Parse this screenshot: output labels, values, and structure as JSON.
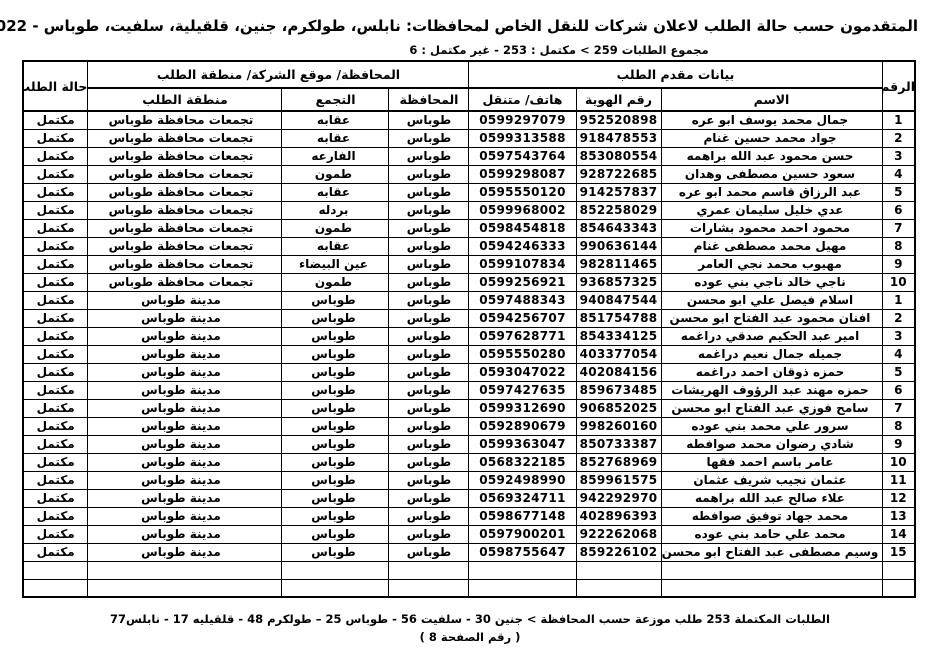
{
  "header": {
    "title": "المتقدمون حسب حالة الطلب لاعلان شركات للنقل الخاص لمحافظات: نابلس، طولكرم، جنين، قلقيلية، سلفيت، طوباس - 2022",
    "subtitle": "مجموع الطلبات 259 > مكتمل : 253 - غير مكتمل : 6"
  },
  "table": {
    "headers": {
      "number": "الرقم",
      "applicant_data": "بيانات مقدم الطلب",
      "location_group": "المحافظة/ موقع الشركة/ منطقة الطلب",
      "status": "حالة الطلب",
      "name": "الاسم",
      "id": "رقم الهوية",
      "phone": "هاتف/ متنقل",
      "governorate": "المحافظة",
      "community": "التجمع",
      "area": "منطقة الطلب"
    },
    "rows": [
      {
        "num": "1",
        "name": "جمال محمد يوسف ابو عره",
        "id": "952520898",
        "phone": "0599297079",
        "gov": "طوباس",
        "community": "عقابه",
        "area": "تجمعات محافظة طوباس",
        "status": "مكتمل"
      },
      {
        "num": "2",
        "name": "جواد محمد حسين غنام",
        "id": "918478553",
        "phone": "0599313588",
        "gov": "طوباس",
        "community": "عقابه",
        "area": "تجمعات محافظة طوباس",
        "status": "مكتمل"
      },
      {
        "num": "3",
        "name": "حسن محمود عبد الله براهمه",
        "id": "853080554",
        "phone": "0597543764",
        "gov": "طوباس",
        "community": "الفارعه",
        "area": "تجمعات محافظة طوباس",
        "status": "مكتمل"
      },
      {
        "num": "4",
        "name": "سعود حسين مصطفى وهدان",
        "id": "928722685",
        "phone": "0599298087",
        "gov": "طوباس",
        "community": "طمون",
        "area": "تجمعات محافظة طوباس",
        "status": "مكتمل"
      },
      {
        "num": "5",
        "name": "عبد الرزاق قاسم محمد ابو عره",
        "id": "914257837",
        "phone": "0595550120",
        "gov": "طوباس",
        "community": "عقابه",
        "area": "تجمعات محافظة طوباس",
        "status": "مكتمل"
      },
      {
        "num": "6",
        "name": "عدي خليل سليمان عمري",
        "id": "852258029",
        "phone": "0599968002",
        "gov": "طوباس",
        "community": "بردله",
        "area": "تجمعات محافظة طوباس",
        "status": "مكتمل"
      },
      {
        "num": "7",
        "name": "محمود احمد محمود بشارات",
        "id": "854643343",
        "phone": "0598454818",
        "gov": "طوباس",
        "community": "طمون",
        "area": "تجمعات محافظة طوباس",
        "status": "مكتمل"
      },
      {
        "num": "8",
        "name": "مهيل محمد مصطفى غنام",
        "id": "990636144",
        "phone": "0594246333",
        "gov": "طوباس",
        "community": "عقابه",
        "area": "تجمعات محافظة طوباس",
        "status": "مكتمل"
      },
      {
        "num": "9",
        "name": "مهيوب محمد نجي العامر",
        "id": "982811465",
        "phone": "0599107834",
        "gov": "طوباس",
        "community": "عين البيضاء",
        "area": "تجمعات محافظة طوباس",
        "status": "مكتمل"
      },
      {
        "num": "10",
        "name": "ناجي خالد ناجي بني عوده",
        "id": "936857325",
        "phone": "0599256921",
        "gov": "طوباس",
        "community": "طمون",
        "area": "تجمعات محافظة طوباس",
        "status": "مكتمل"
      },
      {
        "num": "1",
        "name": "اسلام فيصل علي ابو محسن",
        "id": "940847544",
        "phone": "0597488343",
        "gov": "طوباس",
        "community": "طوباس",
        "area": "مدينة طوباس",
        "status": "مكتمل"
      },
      {
        "num": "2",
        "name": "افنان محمود عبد الفتاح ابو محسن",
        "id": "851754788",
        "phone": "0594256707",
        "gov": "طوباس",
        "community": "طوباس",
        "area": "مدينة طوباس",
        "status": "مكتمل"
      },
      {
        "num": "3",
        "name": "امير عبد الحكيم صدقي دراغمه",
        "id": "854334125",
        "phone": "0597628771",
        "gov": "طوباس",
        "community": "طوباس",
        "area": "مدينة طوباس",
        "status": "مكتمل"
      },
      {
        "num": "4",
        "name": "جميله جمال نعيم دراغمه",
        "id": "403377054",
        "phone": "0595550280",
        "gov": "طوباس",
        "community": "طوباس",
        "area": "مدينة طوباس",
        "status": "مكتمل"
      },
      {
        "num": "5",
        "name": "حمزه ذوقان احمد دراغمه",
        "id": "402084156",
        "phone": "0593047022",
        "gov": "طوباس",
        "community": "طوباس",
        "area": "مدينة طوباس",
        "status": "مكتمل"
      },
      {
        "num": "6",
        "name": "حمزه مهند عبد الرؤوف الهريشات",
        "id": "859673485",
        "phone": "0597427635",
        "gov": "طوباس",
        "community": "طوباس",
        "area": "مدينة طوباس",
        "status": "مكتمل"
      },
      {
        "num": "7",
        "name": "سامح فوزي عبد الفتاح ابو محسن",
        "id": "906852025",
        "phone": "0599312690",
        "gov": "طوباس",
        "community": "طوباس",
        "area": "مدينة طوباس",
        "status": "مكتمل"
      },
      {
        "num": "8",
        "name": "سرور علي محمد بني عوده",
        "id": "998260160",
        "phone": "0592890679",
        "gov": "طوباس",
        "community": "طوباس",
        "area": "مدينة طوباس",
        "status": "مكتمل"
      },
      {
        "num": "9",
        "name": "شادي رضوان محمد صوافطه",
        "id": "850733387",
        "phone": "0599363047",
        "gov": "طوباس",
        "community": "طوباس",
        "area": "مدينة طوباس",
        "status": "مكتمل"
      },
      {
        "num": "10",
        "name": "عامر باسم احمد فقها",
        "id": "852768969",
        "phone": "0568322185",
        "gov": "طوباس",
        "community": "طوباس",
        "area": "مدينة طوباس",
        "status": "مكتمل"
      },
      {
        "num": "11",
        "name": "عثمان نجيب شريف عثمان",
        "id": "859961575",
        "phone": "0592498990",
        "gov": "طوباس",
        "community": "طوباس",
        "area": "مدينة طوباس",
        "status": "مكتمل"
      },
      {
        "num": "12",
        "name": "علاء صالح عبد الله براهمه",
        "id": "942292970",
        "phone": "0569324711",
        "gov": "طوباس",
        "community": "طوباس",
        "area": "مدينة طوباس",
        "status": "مكتمل"
      },
      {
        "num": "13",
        "name": "محمد جهاد توفيق صوافطه",
        "id": "402896393",
        "phone": "0598677148",
        "gov": "طوباس",
        "community": "طوباس",
        "area": "مدينة طوباس",
        "status": "مكتمل"
      },
      {
        "num": "14",
        "name": "محمد علي حامد بني عوده",
        "id": "922262068",
        "phone": "0597900201",
        "gov": "طوباس",
        "community": "طوباس",
        "area": "مدينة طوباس",
        "status": "مكتمل"
      },
      {
        "num": "15",
        "name": "وسيم مصطفى عبد الفتاح ابو محسن",
        "id": "859226102",
        "phone": "0598755647",
        "gov": "طوباس",
        "community": "طوباس",
        "area": "مدينة طوباس",
        "status": "مكتمل"
      },
      {
        "num": "",
        "name": "",
        "id": "",
        "phone": "",
        "gov": "",
        "community": "",
        "area": "",
        "status": ""
      },
      {
        "num": "",
        "name": "",
        "id": "",
        "phone": "",
        "gov": "",
        "community": "",
        "area": "",
        "status": ""
      }
    ]
  },
  "footer": {
    "line1": "الطلبات المكتملة 253 طلب موزعة حسب المحافظة > جنين 30 -  سلفيت 56 -  طوباس 25 – طولكرم 48 -  قلقيليه 17 -  نابلس77",
    "line2": "( رقم الصفحة 8 )"
  }
}
